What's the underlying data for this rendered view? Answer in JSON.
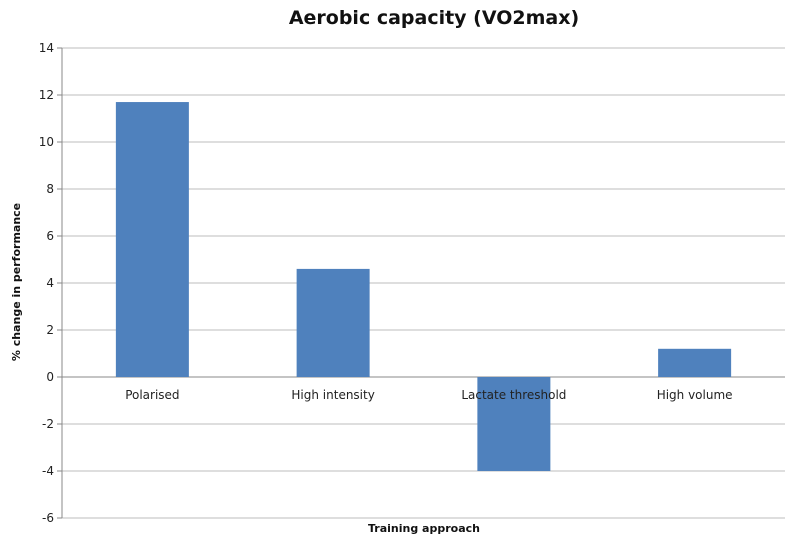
{
  "chart_data": {
    "type": "bar",
    "title": "Aerobic capacity (VO2max)",
    "xlabel": "Training approach",
    "ylabel": "% change in performance",
    "categories": [
      "Polarised",
      "High intensity",
      "Lactate threshold",
      "High volume"
    ],
    "values": [
      11.7,
      4.6,
      -4.0,
      1.2
    ],
    "ylim": [
      -6,
      14
    ],
    "yticks": [
      14,
      12,
      10,
      8,
      6,
      4,
      2,
      0,
      -2,
      -4,
      -6
    ],
    "grid": true,
    "legend": "none",
    "bar_color": "#4f81bd"
  }
}
